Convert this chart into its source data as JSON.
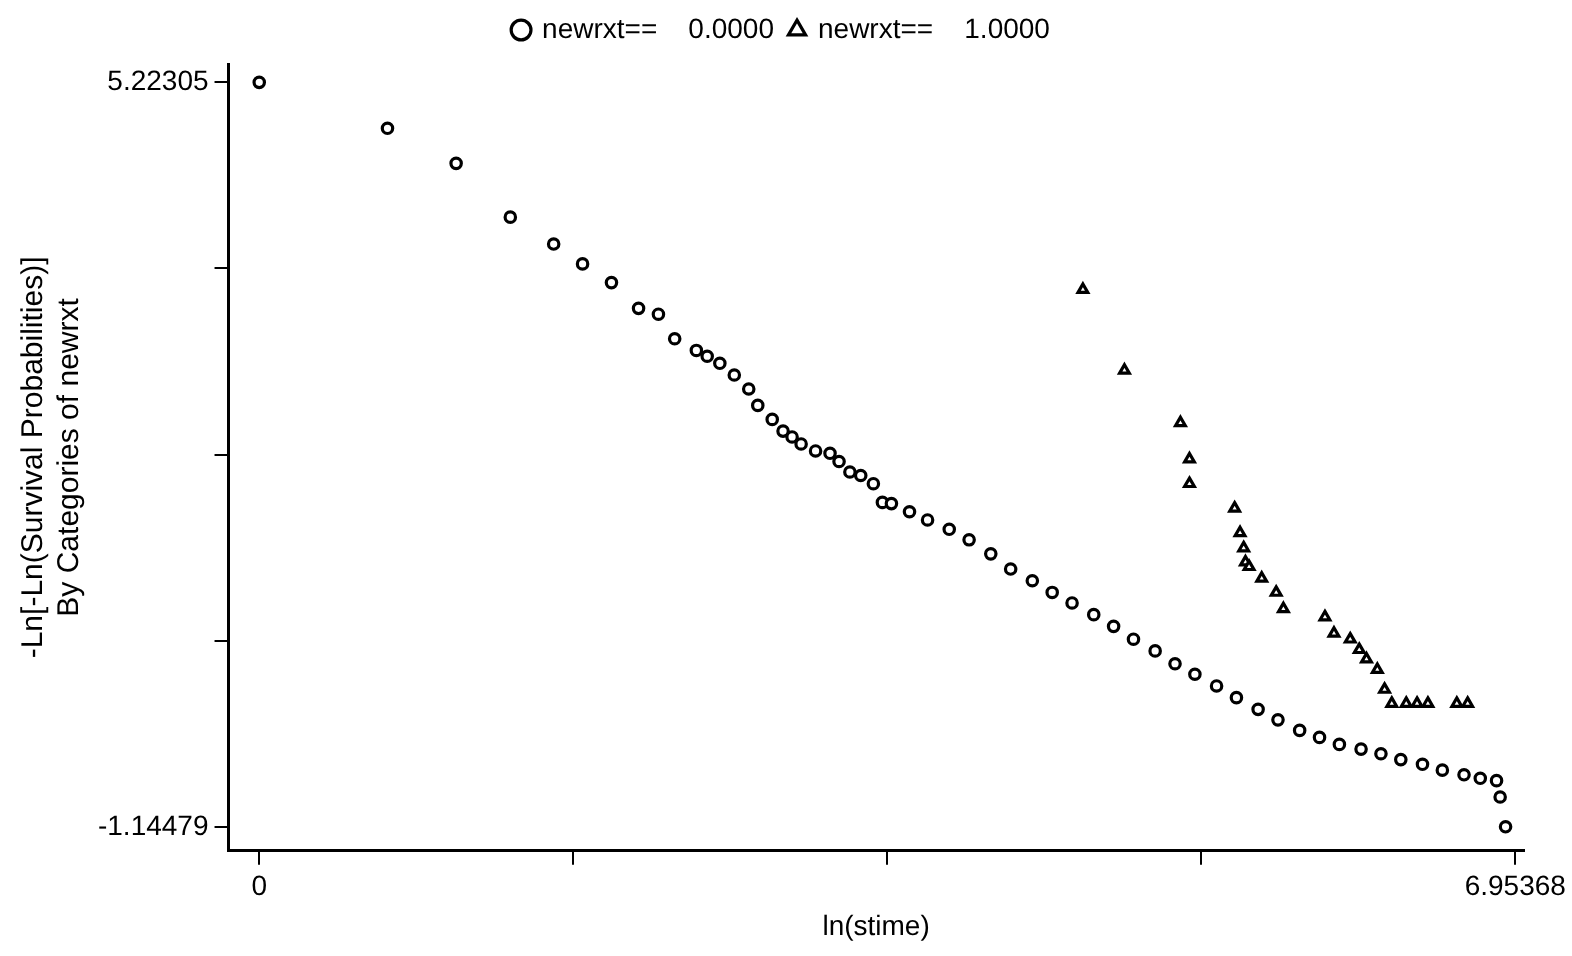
{
  "chart_data": {
    "type": "scatter",
    "xlabel": "ln(stime)",
    "ylabel": "-Ln[-Ln(Survival Probabilities)]\nBy Categories of newrxt",
    "xlim": [
      -0.17,
      7.0
    ],
    "ylim": [
      -1.35,
      5.38
    ],
    "xticks": [
      0,
      {
        "value": 1.73842,
        "label": null
      },
      {
        "value": 3.47684,
        "label": null
      },
      {
        "value": 5.21526,
        "label": null
      },
      6.95368
    ],
    "yticks": [
      -1.14479,
      {
        "value": 0.44717,
        "label": null
      },
      {
        "value": 2.03913,
        "label": null
      },
      {
        "value": 3.63109,
        "label": null
      },
      5.22305
    ],
    "grid": false,
    "legend": "top",
    "series": [
      {
        "name": "newrxt==    0.0000",
        "color": "#000000",
        "marker": "circle",
        "x": [
          0,
          0.71,
          1.09,
          1.39,
          1.63,
          1.79,
          1.95,
          2.1,
          2.21,
          2.3,
          2.42,
          2.48,
          2.55,
          2.63,
          2.71,
          2.76,
          2.84,
          2.9,
          2.95,
          3.0,
          3.08,
          3.16,
          3.21,
          3.27,
          3.33,
          3.4,
          3.45,
          3.5,
          3.6,
          3.7,
          3.82,
          3.93,
          4.05,
          4.16,
          4.28,
          4.39,
          4.5,
          4.62,
          4.73,
          4.84,
          4.96,
          5.07,
          5.18,
          5.3,
          5.41,
          5.53,
          5.64,
          5.76,
          5.87,
          5.98,
          6.1,
          6.21,
          6.32,
          6.44,
          6.55,
          6.67,
          6.76,
          6.85,
          6.87,
          6.9
        ],
        "values": [
          5.22305,
          4.83,
          4.53,
          4.07,
          3.84,
          3.67,
          3.51,
          3.29,
          3.24,
          3.03,
          2.93,
          2.88,
          2.82,
          2.72,
          2.6,
          2.46,
          2.34,
          2.24,
          2.19,
          2.13,
          2.07,
          2.05,
          1.98,
          1.89,
          1.86,
          1.79,
          1.63,
          1.62,
          1.55,
          1.48,
          1.4,
          1.31,
          1.19,
          1.06,
          0.96,
          0.86,
          0.77,
          0.67,
          0.57,
          0.46,
          0.36,
          0.25,
          0.16,
          0.06,
          -0.04,
          -0.14,
          -0.23,
          -0.32,
          -0.38,
          -0.44,
          -0.48,
          -0.52,
          -0.57,
          -0.61,
          -0.66,
          -0.7,
          -0.73,
          -0.75,
          -0.89,
          -1.14479
        ]
      },
      {
        "name": "newrxt==    1.0000",
        "color": "#000000",
        "marker": "triangle",
        "x": [
          4.56,
          4.79,
          5.1,
          5.15,
          5.15,
          5.4,
          5.43,
          5.45,
          5.46,
          5.48,
          5.55,
          5.63,
          5.67,
          5.9,
          5.95,
          6.04,
          6.09,
          6.13,
          6.19,
          6.23,
          6.27,
          6.35,
          6.41,
          6.47,
          6.63,
          6.69
        ],
        "values": [
          3.45,
          2.76,
          2.31,
          2.0,
          1.79,
          1.58,
          1.37,
          1.24,
          1.12,
          1.08,
          0.98,
          0.86,
          0.72,
          0.65,
          0.51,
          0.46,
          0.37,
          0.29,
          0.2,
          0.03,
          -0.09,
          -0.09,
          -0.09,
          -0.09,
          -0.09,
          -0.09
        ]
      }
    ]
  }
}
